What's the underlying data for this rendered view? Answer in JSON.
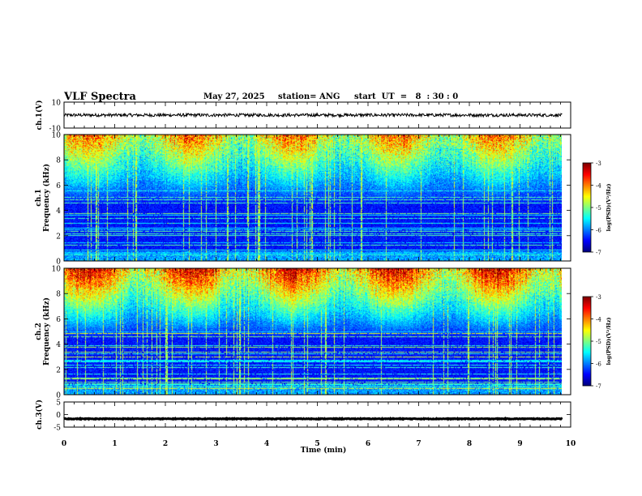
{
  "header": {
    "title": "VLF Spectra",
    "date": "May 27, 2025",
    "station": "station= ANG",
    "start": "start  UT  =   8  : 30 : 0"
  },
  "chart_data": [
    {
      "type": "line",
      "panel": "ch1-waveform",
      "ylabel": "ch.1(V)",
      "ylim": [
        -10,
        10
      ],
      "yticks": [
        10,
        -10
      ],
      "xlim": [
        0,
        10
      ],
      "data_end_min": 9.83,
      "mean": 0,
      "amplitude": 1.2,
      "color": "#000000"
    },
    {
      "type": "heatmap",
      "panel": "ch1-spectrogram",
      "ylabel": "ch.1 Frequency (kHz)",
      "ylim": [
        0,
        10
      ],
      "yticks": [
        0,
        2,
        4,
        6,
        8,
        10
      ],
      "xlim": [
        0,
        10
      ],
      "data_end_min": 9.83,
      "noise_level": 0.55,
      "colorbar": {
        "label": "log(PSD)(V²/Hz)",
        "range": [
          -7,
          -3
        ],
        "ticks": [
          "-3",
          "-4",
          "-5",
          "-6",
          "-7"
        ]
      }
    },
    {
      "type": "heatmap",
      "panel": "ch2-spectrogram",
      "ylabel": "ch.2 Frequency (kHz)",
      "ylim": [
        0,
        10
      ],
      "yticks": [
        0,
        2,
        4,
        6,
        8,
        10
      ],
      "xlim": [
        0,
        10
      ],
      "data_end_min": 9.83,
      "noise_level": 0.72,
      "colorbar": {
        "label": "log(PSD)(V²/Hz)",
        "range": [
          -7,
          -3
        ],
        "ticks": [
          "-3",
          "-4",
          "-5",
          "-6",
          "-7"
        ]
      }
    },
    {
      "type": "line",
      "panel": "ch3-waveform",
      "ylabel": "ch.3(V)",
      "ylim": [
        -5,
        5
      ],
      "yticks": [
        5,
        0,
        -5
      ],
      "xlim": [
        0,
        10
      ],
      "data_end_min": 9.83,
      "mean": -1.7,
      "amplitude": 0.15,
      "color": "#000000"
    }
  ],
  "xaxis": {
    "label": "Time  (min)",
    "ticks": [
      "0",
      "1",
      "2",
      "3",
      "4",
      "5",
      "6",
      "7",
      "8",
      "9",
      "10"
    ]
  }
}
